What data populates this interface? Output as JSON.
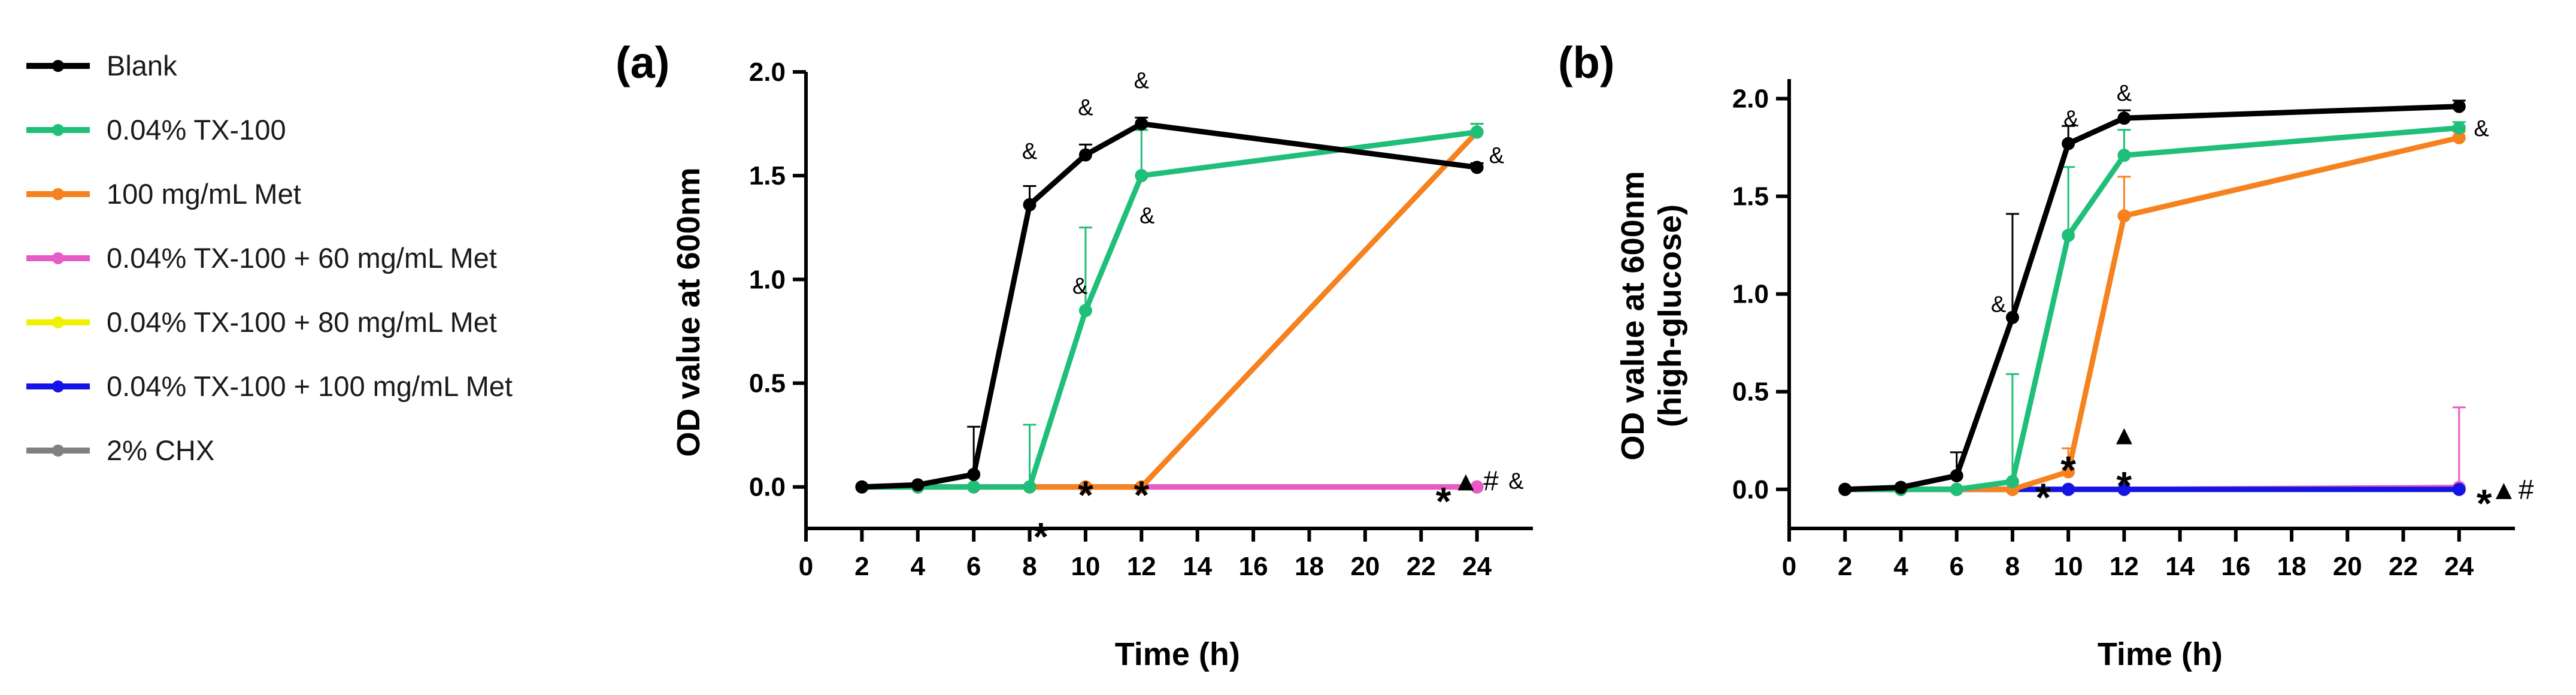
{
  "legend": [
    {
      "label": "Blank",
      "color": "#000000"
    },
    {
      "label": "0.04% TX-100",
      "color": "#1fbf7a"
    },
    {
      "label": "100 mg/mL Met",
      "color": "#f5821f"
    },
    {
      "label": "0.04% TX-100 + 60 mg/mL Met",
      "color": "#e65bc7"
    },
    {
      "label": "0.04% TX-100 + 80 mg/mL Met",
      "color": "#f2f200"
    },
    {
      "label": "0.04% TX-100 + 100 mg/mL Met",
      "color": "#1414e6"
    },
    {
      "label": "2% CHX",
      "color": "#808080"
    }
  ],
  "chart_data": [
    {
      "type": "line",
      "panel_label": "(a)",
      "xlabel": "Time (h)",
      "ylabel": "OD value at 600nm",
      "xlim": [
        0,
        26
      ],
      "ylim": [
        -0.2,
        2.0
      ],
      "xticks": [
        0,
        2,
        4,
        6,
        8,
        10,
        12,
        14,
        16,
        18,
        20,
        22,
        24
      ],
      "yticks": [
        0.0,
        0.5,
        1.0,
        1.5,
        2.0
      ],
      "ytick_labels": [
        "0.0",
        "0.5",
        "1.0",
        "1.5",
        "2.0"
      ],
      "series": [
        {
          "name": "2% CHX",
          "x": [
            2,
            4,
            6,
            8,
            10,
            12,
            24
          ],
          "values": [
            0,
            0,
            0,
            0,
            0,
            0,
            0
          ],
          "err": [
            0,
            0,
            0,
            0,
            0,
            0,
            0
          ]
        },
        {
          "name": "0.04% TX-100 + 100 mg/mL Met",
          "x": [
            2,
            4,
            6,
            8,
            10,
            12,
            24
          ],
          "values": [
            0,
            0,
            0,
            0,
            0,
            0,
            0
          ],
          "err": [
            0,
            0,
            0,
            0,
            0,
            0,
            0
          ]
        },
        {
          "name": "0.04% TX-100 + 80 mg/mL Met",
          "x": [
            2,
            4,
            6,
            8,
            10,
            12,
            24
          ],
          "values": [
            0,
            0,
            0,
            0,
            0,
            0,
            0
          ],
          "err": [
            0,
            0,
            0,
            0,
            0,
            0,
            0
          ]
        },
        {
          "name": "0.04% TX-100 + 60 mg/mL Met",
          "x": [
            2,
            4,
            6,
            8,
            10,
            12,
            24
          ],
          "values": [
            0,
            0,
            0,
            0,
            0,
            0,
            0
          ],
          "err": [
            0,
            0,
            0,
            0,
            0,
            0,
            0
          ]
        },
        {
          "name": "100 mg/mL Met",
          "x": [
            2,
            4,
            6,
            8,
            10,
            12,
            24
          ],
          "values": [
            0,
            0,
            0,
            0,
            0,
            0,
            1.71
          ],
          "err": [
            0,
            0,
            0,
            0,
            0,
            0,
            0.04
          ]
        },
        {
          "name": "0.04% TX-100",
          "x": [
            2,
            4,
            6,
            8,
            10,
            12,
            24
          ],
          "values": [
            0,
            0,
            0,
            0,
            0.85,
            1.5,
            1.71
          ],
          "err": [
            0,
            0,
            0,
            0.3,
            0.4,
            0.22,
            0.04
          ]
        },
        {
          "name": "Blank",
          "x": [
            2,
            4,
            6,
            8,
            10,
            12,
            24
          ],
          "values": [
            0,
            0.01,
            0.06,
            1.36,
            1.6,
            1.75,
            1.54
          ],
          "err": [
            0,
            0,
            0.23,
            0.09,
            0.05,
            0.03,
            0.02
          ]
        }
      ],
      "annotations": [
        {
          "text": "&",
          "x": 8,
          "y": 1.62,
          "size": "small"
        },
        {
          "text": "&",
          "x": 10,
          "y": 1.83,
          "size": "small"
        },
        {
          "text": "&",
          "x": 12,
          "y": 1.96,
          "size": "small"
        },
        {
          "text": "&",
          "x": 9.8,
          "y": 0.97,
          "size": "small"
        },
        {
          "text": "&",
          "x": 12.2,
          "y": 1.31,
          "size": "small"
        },
        {
          "text": "&",
          "x": 24.7,
          "y": 1.6,
          "size": "small"
        },
        {
          "text": "*",
          "x": 8.4,
          "y": -0.2,
          "size": "large"
        },
        {
          "text": "*",
          "x": 10,
          "y": 0.0,
          "size": "large"
        },
        {
          "text": "*",
          "x": 12,
          "y": 0.0,
          "size": "large"
        },
        {
          "text": "*",
          "x": 22.8,
          "y": -0.03,
          "size": "large"
        },
        {
          "text": "▲",
          "x": 23.6,
          "y": 0.03,
          "size": "medium"
        },
        {
          "text": "#",
          "x": 24.5,
          "y": 0.03,
          "size": "medium"
        },
        {
          "text": "&",
          "x": 25.4,
          "y": 0.03,
          "size": "small"
        }
      ]
    },
    {
      "type": "line",
      "panel_label": "(b)",
      "xlabel": "Time (h)",
      "ylabel": "OD value at 600nm",
      "ylabel2": "(high-glucose)",
      "xlim": [
        0,
        26
      ],
      "ylim": [
        -0.2,
        2.1
      ],
      "xticks": [
        0,
        2,
        4,
        6,
        8,
        10,
        12,
        14,
        16,
        18,
        20,
        22,
        24
      ],
      "yticks": [
        0.0,
        0.5,
        1.0,
        1.5,
        2.0
      ],
      "ytick_labels": [
        "0.0",
        "0.5",
        "1.0",
        "1.5",
        "2.0"
      ],
      "series": [
        {
          "name": "2% CHX",
          "x": [
            2,
            4,
            6,
            8,
            10,
            12,
            24
          ],
          "values": [
            0,
            0,
            0,
            0,
            0,
            0,
            0
          ],
          "err": [
            0,
            0,
            0,
            0,
            0,
            0,
            0
          ]
        },
        {
          "name": "0.04% TX-100 + 60 mg/mL Met",
          "x": [
            2,
            4,
            6,
            8,
            10,
            12,
            24
          ],
          "values": [
            0,
            0,
            0,
            0,
            0,
            0,
            0.01
          ],
          "err": [
            0,
            0,
            0,
            0,
            0,
            0,
            0.41
          ]
        },
        {
          "name": "0.04% TX-100 + 80 mg/mL Met",
          "x": [
            2,
            4,
            6,
            8,
            10,
            12,
            24
          ],
          "values": [
            0,
            0,
            0,
            0,
            0,
            0,
            0
          ],
          "err": [
            0,
            0,
            0,
            0,
            0,
            0,
            0
          ]
        },
        {
          "name": "0.04% TX-100 + 100 mg/mL Met",
          "x": [
            2,
            4,
            6,
            8,
            10,
            12,
            24
          ],
          "values": [
            0,
            0,
            0,
            0,
            0,
            0,
            0
          ],
          "err": [
            0,
            0,
            0,
            0,
            0,
            0,
            0
          ]
        },
        {
          "name": "100 mg/mL Met",
          "x": [
            2,
            4,
            6,
            8,
            10,
            12,
            24
          ],
          "values": [
            0,
            0,
            0,
            0,
            0.09,
            1.4,
            1.8
          ],
          "err": [
            0,
            0,
            0,
            0,
            0.12,
            0.2,
            0.03
          ]
        },
        {
          "name": "0.04% TX-100",
          "x": [
            2,
            4,
            6,
            8,
            10,
            12,
            24
          ],
          "values": [
            0,
            0,
            0,
            0.04,
            1.3,
            1.71,
            1.85
          ],
          "err": [
            0,
            0,
            0,
            0.55,
            0.35,
            0.13,
            0.03
          ]
        },
        {
          "name": "Blank",
          "x": [
            2,
            4,
            6,
            8,
            10,
            12,
            24
          ],
          "values": [
            0,
            0.01,
            0.07,
            0.88,
            1.77,
            1.9,
            1.96
          ],
          "err": [
            0,
            0,
            0.12,
            0.53,
            0.09,
            0.04,
            0.03
          ]
        }
      ],
      "annotations": [
        {
          "text": "&",
          "x": 7.5,
          "y": 0.95,
          "size": "small"
        },
        {
          "text": "&",
          "x": 10.1,
          "y": 1.9,
          "size": "small"
        },
        {
          "text": "&",
          "x": 12,
          "y": 2.03,
          "size": "small"
        },
        {
          "text": "&",
          "x": 24.8,
          "y": 1.85,
          "size": "small"
        },
        {
          "text": "*",
          "x": 9.1,
          "y": 0.0,
          "size": "large"
        },
        {
          "text": "*",
          "x": 10,
          "y": 0.14,
          "size": "large"
        },
        {
          "text": "▲",
          "x": 12,
          "y": 0.28,
          "size": "medium"
        },
        {
          "text": "*",
          "x": 12,
          "y": 0.06,
          "size": "large"
        },
        {
          "text": "*",
          "x": 24.9,
          "y": -0.03,
          "size": "large"
        },
        {
          "text": "▲",
          "x": 25.6,
          "y": 0.0,
          "size": "medium"
        },
        {
          "text": "#",
          "x": 26.4,
          "y": 0.0,
          "size": "medium"
        }
      ]
    }
  ]
}
